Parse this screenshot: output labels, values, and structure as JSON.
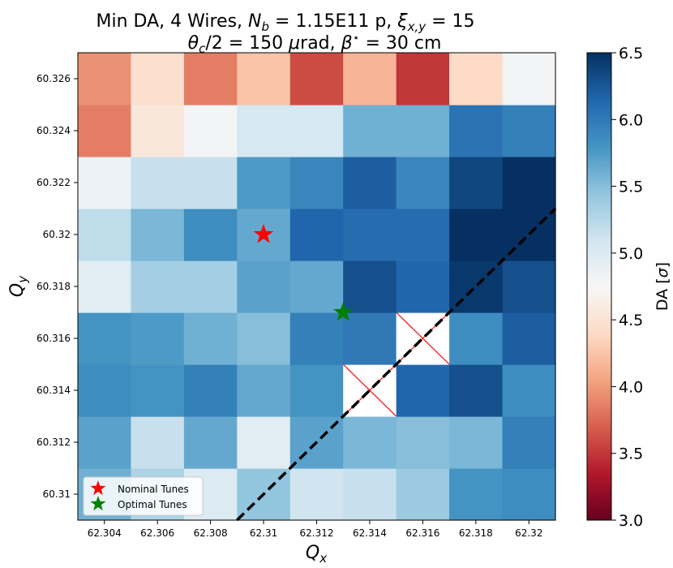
{
  "chart_data": {
    "type": "heatmap",
    "title_line1_prefix": "Min DA, 4 Wires, ",
    "title_nb_symbol": "N",
    "title_nb_sub": "b",
    "title_nb_value": " = 1.15E11 p, ",
    "title_xi_symbol": "ξ",
    "title_xi_sub": "x,y",
    "title_xi_value": " = 15",
    "title_line2_theta": "θ",
    "title_line2_theta_sub": "c",
    "title_line2_mid": "/2 = 150 ",
    "title_line2_mu": "μ",
    "title_line2_rad": "rad, ",
    "title_line2_beta": "β",
    "title_line2_star": "⋆",
    "title_line2_end": " = 30 cm",
    "xlabel_symbol": "Q",
    "xlabel_sub": "x",
    "ylabel_symbol": "Q",
    "ylabel_sub": "y",
    "x_range": [
      62.303,
      62.321
    ],
    "y_range": [
      60.309,
      60.327
    ],
    "x_ticks": [
      62.304,
      62.306,
      62.308,
      62.31,
      62.312,
      62.314,
      62.316,
      62.318,
      62.32
    ],
    "x_tick_labels": [
      "62.304",
      "62.306",
      "62.308",
      "62.31",
      "62.312",
      "62.314",
      "62.316",
      "62.318",
      "62.32"
    ],
    "y_ticks": [
      60.31,
      60.312,
      60.314,
      60.316,
      60.318,
      60.32,
      60.322,
      60.324,
      60.326
    ],
    "y_tick_labels": [
      "60.31",
      "60.312",
      "60.314",
      "60.316",
      "60.318",
      "60.32",
      "60.322",
      "60.324",
      "60.326"
    ],
    "cell_x_centers": [
      62.304,
      62.306,
      62.308,
      62.31,
      62.312,
      62.314,
      62.316,
      62.318,
      62.32
    ],
    "cell_y_centers": [
      60.31,
      60.312,
      60.314,
      60.316,
      60.318,
      60.32,
      60.322,
      60.324,
      60.326
    ],
    "values_by_row_bottom_to_top": [
      [
        5.6,
        5.3,
        5.0,
        5.45,
        5.1,
        5.15,
        5.4,
        5.8,
        5.85
      ],
      [
        5.7,
        5.15,
        5.65,
        4.95,
        5.7,
        5.55,
        5.5,
        5.55,
        5.95
      ],
      [
        5.85,
        5.8,
        5.95,
        5.65,
        5.8,
        null,
        6.15,
        6.3,
        5.85
      ],
      [
        5.8,
        5.75,
        5.6,
        5.5,
        5.95,
        6.0,
        null,
        5.85,
        6.2
      ],
      [
        4.95,
        5.35,
        5.35,
        5.7,
        5.65,
        6.3,
        6.15,
        6.45,
        6.3
      ],
      [
        5.2,
        5.55,
        5.85,
        5.65,
        6.15,
        6.1,
        6.1,
        6.5,
        6.5
      ],
      [
        4.85,
        5.15,
        5.15,
        5.75,
        5.9,
        6.2,
        5.9,
        6.35,
        6.5
      ],
      [
        3.85,
        4.55,
        4.8,
        5.05,
        5.05,
        5.6,
        5.6,
        6.05,
        5.95
      ],
      [
        3.95,
        4.45,
        3.85,
        4.25,
        3.6,
        4.15,
        3.5,
        4.4,
        4.8
      ]
    ],
    "missing_cells_marker": "red X",
    "resonance_line": [
      [
        62.309,
        60.309
      ],
      [
        62.321,
        60.321
      ]
    ],
    "markers": [
      {
        "label": "Nominal Tunes",
        "x": 62.31,
        "y": 60.32,
        "color": "#ff0000"
      },
      {
        "label": "Optimal Tunes",
        "x": 62.313,
        "y": 60.317,
        "color": "#008000"
      }
    ],
    "legend_location": "lower-left",
    "colorbar": {
      "label_prefix": "DA [",
      "label_symbol": "σ",
      "label_suffix": "]",
      "min": 3.0,
      "max": 6.5,
      "ticks": [
        3.0,
        3.5,
        4.0,
        4.5,
        5.0,
        5.5,
        6.0,
        6.5
      ],
      "tick_labels": [
        "3.0",
        "3.5",
        "4.0",
        "4.5",
        "5.0",
        "5.5",
        "6.0",
        "6.5"
      ],
      "colormap": "RdBu"
    }
  }
}
